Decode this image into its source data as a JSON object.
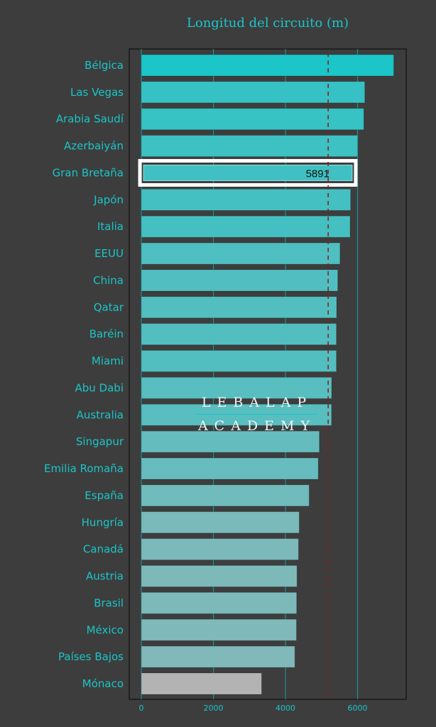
{
  "chart_data": {
    "type": "bar",
    "orientation": "horizontal",
    "title": "Longitud del circuito (m)",
    "xlabel": "",
    "ylabel": "",
    "xlim": [
      -336,
      7350
    ],
    "xticks": [
      0,
      2000,
      4000,
      6000
    ],
    "grid": "vertical",
    "categories": [
      "Bélgica",
      "Las Vegas",
      "Arabia Saudí",
      "Azerbaiyán",
      "Gran Bretaña",
      "Japón",
      "Italia",
      "EEUU",
      "China",
      "Qatar",
      "Baréin",
      "Miami",
      "Abu Dabi",
      "Australia",
      "Singapur",
      "Emilia Romaña",
      "España",
      "Hungría",
      "Canadá",
      "Austria",
      "Brasil",
      "México",
      "Países Bajos",
      "Mónaco"
    ],
    "values": [
      7004,
      6201,
      6174,
      6003,
      5891,
      5807,
      5793,
      5513,
      5451,
      5419,
      5412,
      5412,
      5281,
      5278,
      4940,
      4909,
      4657,
      4381,
      4361,
      4318,
      4309,
      4304,
      4259,
      3337
    ],
    "highlight": {
      "category": "Gran Bretaña",
      "label": "5891"
    },
    "reference_line": {
      "value": 5185,
      "style": "dashed",
      "color": "#8b1a1a"
    },
    "colors": {
      "max": "#1bc5c8",
      "min": "#b3b3b3",
      "text": "#1bc5c8",
      "grid": "#1f8f93"
    }
  },
  "watermark": {
    "line1": "LEBALAP",
    "line2": "ACADEMY"
  }
}
